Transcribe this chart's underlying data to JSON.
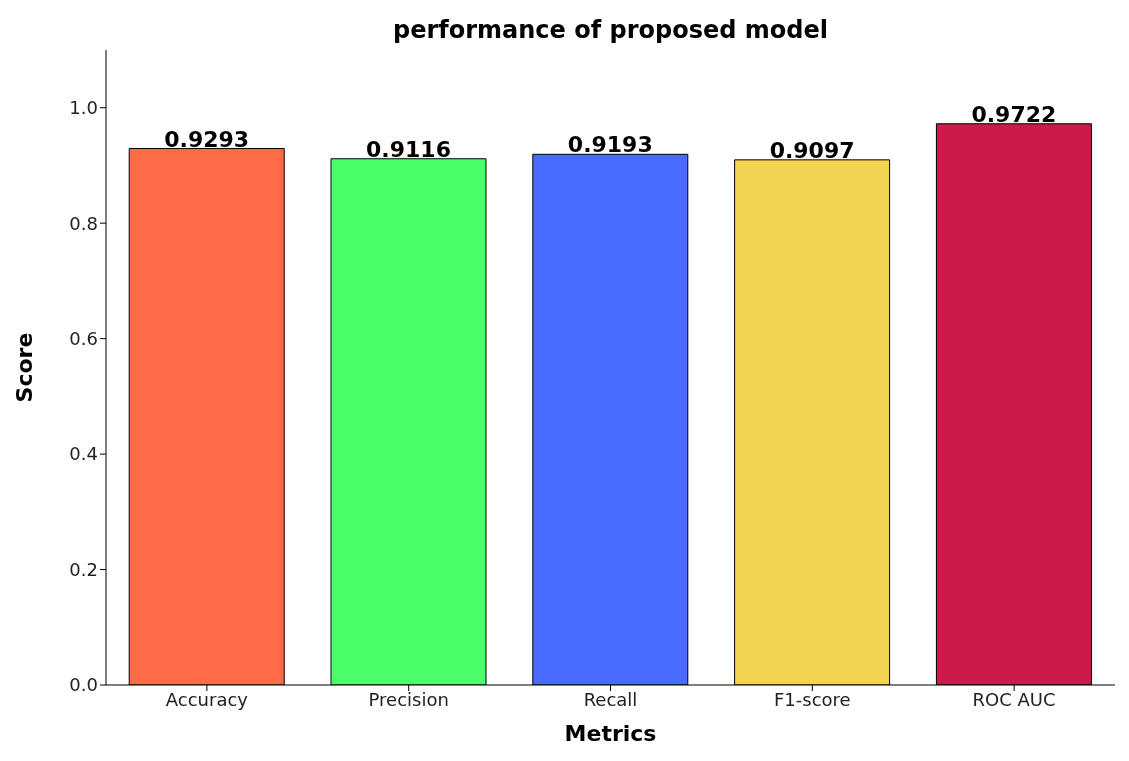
{
  "chart_data": {
    "type": "bar",
    "title": "performance of proposed model",
    "xlabel": "Metrics",
    "ylabel": "Score",
    "categories": [
      "Accuracy",
      "Precision",
      "Recall",
      "F1-score",
      "ROC AUC"
    ],
    "values": [
      0.9293,
      0.9116,
      0.9193,
      0.9097,
      0.9722
    ],
    "colors": [
      "#ff6a47",
      "#4aff6a",
      "#4a6bff",
      "#f2d352",
      "#cc1a4a"
    ],
    "ylim": [
      0,
      1.1
    ],
    "yticks": [
      {
        "value": 0,
        "label": "0.0"
      },
      {
        "value": 0.2,
        "label": "0.2"
      },
      {
        "value": 0.4,
        "label": "0.4"
      },
      {
        "value": 0.6,
        "label": "0.6"
      },
      {
        "value": 0.8,
        "label": "0.8"
      },
      {
        "value": 1,
        "label": "1.0"
      }
    ],
    "grid": false,
    "legend": false,
    "data_labels": true
  }
}
